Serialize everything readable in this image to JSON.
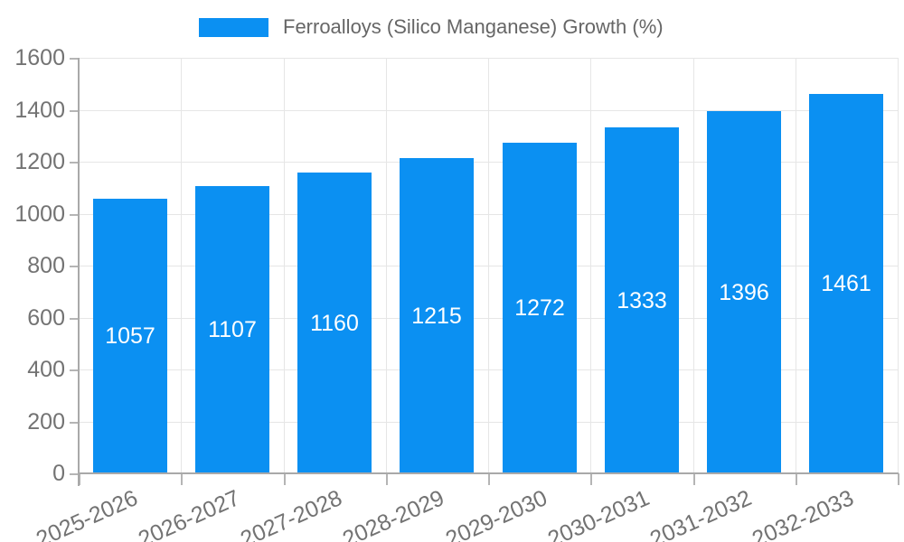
{
  "chart_data": {
    "type": "bar",
    "title": "Ferroalloys (Silico Manganese) Growth (%)",
    "categories": [
      "2025-2026",
      "2026-2027",
      "2027-2028",
      "2028-2029",
      "2029-2030",
      "2030-2031",
      "2031-2032",
      "2032-2033"
    ],
    "values": [
      1057,
      1107,
      1160,
      1215,
      1272,
      1333,
      1396,
      1461
    ],
    "xlabel": "",
    "ylabel": "",
    "ylim": [
      0,
      1600
    ],
    "ytick_step": 200,
    "grid": true,
    "legend_position": "top",
    "colors": {
      "bar": "#0b90f2",
      "bar_label_text": "#ffffff",
      "tick_text": "#737373",
      "legend_text": "#666666",
      "grid": "#e6e6e6",
      "axis": "#a9a9a9",
      "background": "#ffffff"
    }
  }
}
